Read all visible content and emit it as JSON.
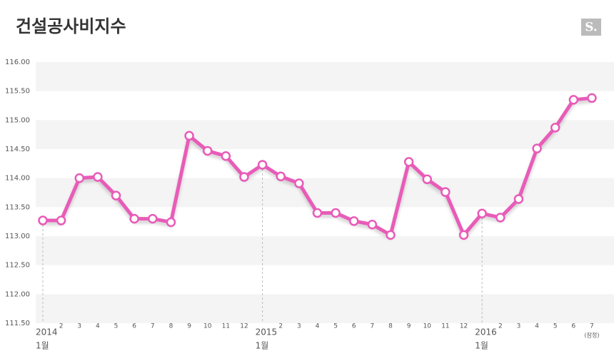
{
  "chart_data": {
    "type": "line",
    "title": "건설공사비지수",
    "logo": "S.",
    "categories": [
      "1월",
      "2",
      "3",
      "4",
      "5",
      "6",
      "7",
      "8",
      "9",
      "10",
      "11",
      "12",
      "1월",
      "2",
      "3",
      "4",
      "5",
      "6",
      "7",
      "8",
      "9",
      "10",
      "11",
      "12",
      "1월",
      "2",
      "3",
      "4",
      "5",
      "6",
      "7"
    ],
    "years": [
      "2014",
      null,
      null,
      null,
      null,
      null,
      null,
      null,
      null,
      null,
      null,
      null,
      "2015",
      null,
      null,
      null,
      null,
      null,
      null,
      null,
      null,
      null,
      null,
      null,
      "2016",
      null,
      null,
      null,
      null,
      null,
      null
    ],
    "note": "(잠정)",
    "series": [
      {
        "name": "건설공사비지수",
        "color": "#e85bb8",
        "values": [
          113.27,
          113.27,
          114.0,
          114.02,
          113.7,
          113.3,
          113.3,
          113.24,
          114.73,
          114.47,
          114.38,
          114.02,
          114.23,
          114.03,
          113.91,
          113.4,
          113.4,
          113.26,
          113.2,
          113.02,
          114.28,
          113.98,
          113.76,
          113.02,
          113.39,
          113.32,
          113.64,
          114.51,
          114.87,
          115.35,
          115.38
        ]
      }
    ],
    "ylim": [
      111.5,
      116.0
    ],
    "yticks": [
      {
        "value": 111.5,
        "label": "111.50"
      },
      {
        "value": 112.0,
        "label": "112.00"
      },
      {
        "value": 112.5,
        "label": "112.50"
      },
      {
        "value": 113.0,
        "label": "113.00"
      },
      {
        "value": 113.5,
        "label": "113.50"
      },
      {
        "value": 114.0,
        "label": "114.00"
      },
      {
        "value": 114.5,
        "label": "114.50"
      },
      {
        "value": 115.0,
        "label": "115.00"
      },
      {
        "value": 115.5,
        "label": "115.50"
      },
      {
        "value": 116.0,
        "label": "116.00"
      }
    ]
  }
}
